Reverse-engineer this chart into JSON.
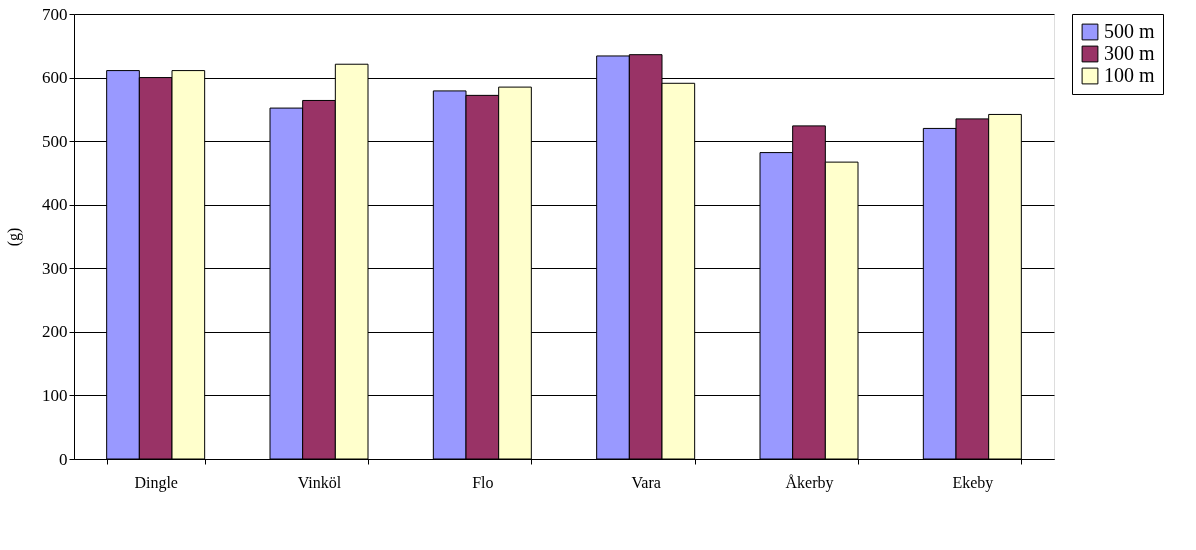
{
  "chart_data": {
    "type": "bar",
    "ylabel": "(g)",
    "categories": [
      "Dingle",
      "Vinköl",
      "Flo",
      "Vara",
      "Åkerby",
      "Ekeby"
    ],
    "series": [
      {
        "name": "500 m",
        "color": "#9999ff",
        "values": [
          611,
          552,
          579,
          634,
          482,
          520
        ]
      },
      {
        "name": "300 m",
        "color": "#993366",
        "values": [
          600,
          564,
          572,
          636,
          524,
          535
        ]
      },
      {
        "name": "100 m",
        "color": "#ffffcc",
        "values": [
          611,
          621,
          585,
          591,
          467,
          542
        ]
      }
    ],
    "ylim": [
      0,
      700
    ],
    "yticks": [
      0,
      100,
      200,
      300,
      400,
      500,
      600,
      700
    ],
    "grid": "y",
    "legend": "right"
  }
}
